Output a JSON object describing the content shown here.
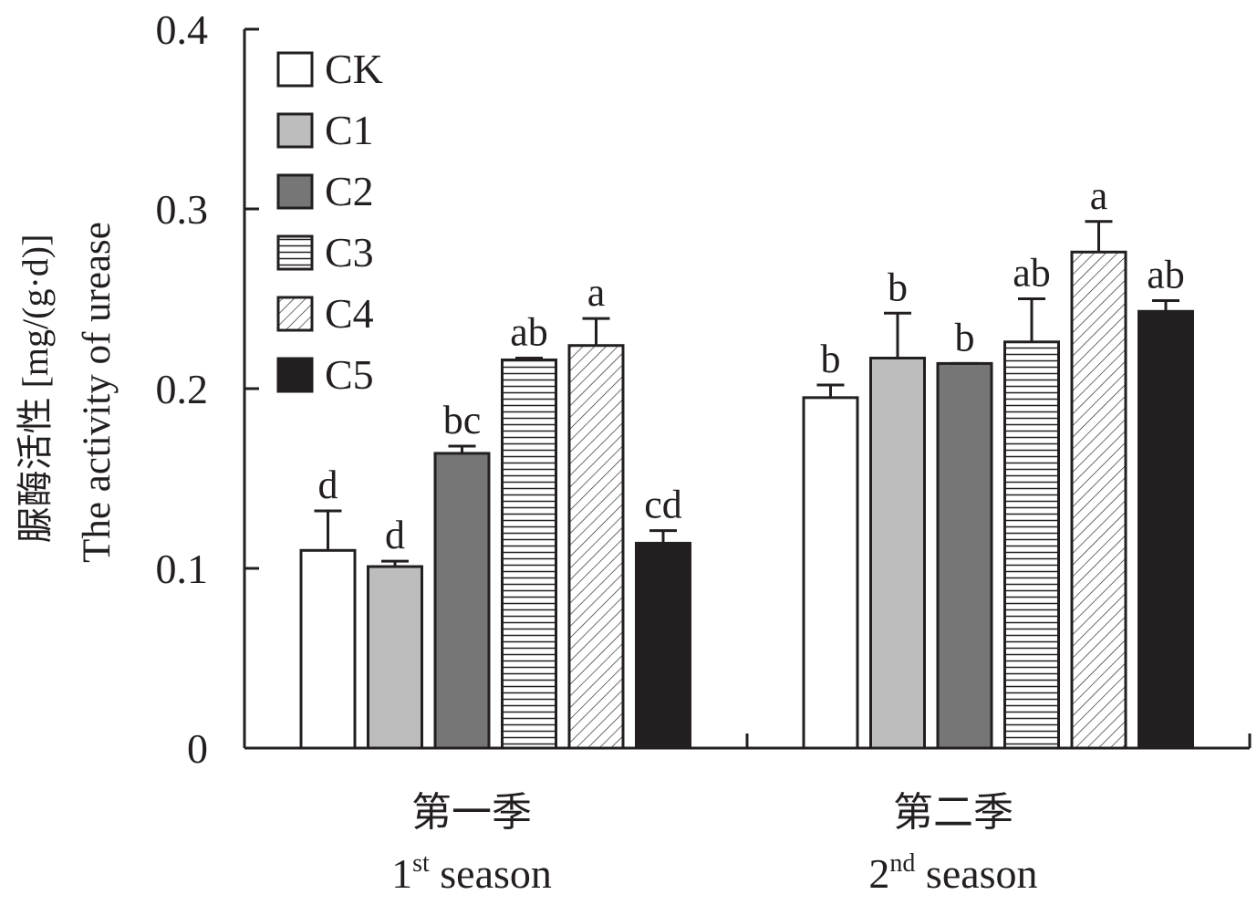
{
  "chart_data": {
    "type": "bar",
    "ylabel_cn": "脲酶活性 [mg/(g·d)]",
    "ylabel_en": "The activity of urease",
    "ylim": [
      0,
      0.4
    ],
    "y_ticks": [
      "0",
      "0.1",
      "0.2",
      "0.3",
      "0.4"
    ],
    "y_tick_values": [
      0,
      0.1,
      0.2,
      0.3,
      0.4
    ],
    "groups": [
      {
        "cn": "第一季",
        "en_num": "1",
        "en_sup": "st",
        "en_rest": " season"
      },
      {
        "cn": "第二季",
        "en_num": "2",
        "en_sup": "nd",
        "en_rest": " season"
      }
    ],
    "series": [
      {
        "name": "CK",
        "values": [
          0.11,
          0.195
        ],
        "errors": [
          0.022,
          0.007
        ],
        "letters": [
          "d",
          "b"
        ],
        "fill": "#ffffff",
        "pattern": "none"
      },
      {
        "name": "C1",
        "values": [
          0.101,
          0.217
        ],
        "errors": [
          0.003,
          0.025
        ],
        "letters": [
          "d",
          "b"
        ],
        "fill": "#bdbdbd",
        "pattern": "none"
      },
      {
        "name": "C2",
        "values": [
          0.164,
          0.214
        ],
        "errors": [
          0.004,
          0.0
        ],
        "letters": [
          "bc",
          "b"
        ],
        "fill": "#767676",
        "pattern": "none"
      },
      {
        "name": "C3",
        "values": [
          0.216,
          0.226
        ],
        "errors": [
          0.001,
          0.024
        ],
        "letters": [
          "ab",
          "ab"
        ],
        "fill": "#ffffff",
        "pattern": "horizontal"
      },
      {
        "name": "C4",
        "values": [
          0.224,
          0.276
        ],
        "errors": [
          0.015,
          0.017
        ],
        "letters": [
          "a",
          "a"
        ],
        "fill": "#ffffff",
        "pattern": "diagonal"
      },
      {
        "name": "C5",
        "values": [
          0.114,
          0.243
        ],
        "errors": [
          0.007,
          0.006
        ],
        "letters": [
          "cd",
          "ab"
        ],
        "fill": "#231f20",
        "pattern": "none"
      }
    ],
    "legend_position": "top-left",
    "grid": false
  }
}
